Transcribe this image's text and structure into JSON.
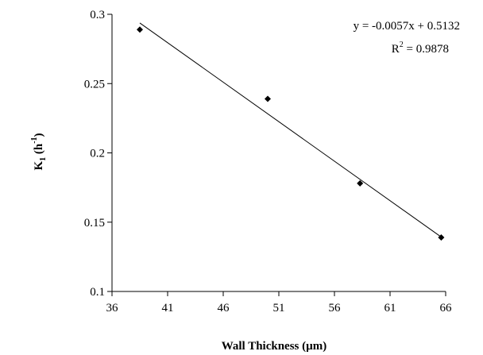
{
  "chart_data": {
    "type": "scatter",
    "xlabel": "Wall Thickness (µm)",
    "ylabel": {
      "main": "K",
      "sub": "1",
      "unit_open": " (h",
      "unit_sup": "-1",
      "unit_close": ")"
    },
    "xlim": [
      36,
      66
    ],
    "ylim": [
      0.1,
      0.3
    ],
    "xticks": [
      36,
      41,
      46,
      51,
      56,
      61,
      66
    ],
    "yticks": [
      0.1,
      0.15,
      0.2,
      0.25,
      0.3
    ],
    "xtick_labels": [
      "36",
      "41",
      "46",
      "51",
      "56",
      "61",
      "66"
    ],
    "ytick_labels": [
      "0.1",
      "0.15",
      "0.2",
      "0.25",
      "0.3"
    ],
    "grid": false,
    "points": [
      {
        "x": 38.5,
        "y": 0.289
      },
      {
        "x": 50.0,
        "y": 0.239
      },
      {
        "x": 58.3,
        "y": 0.178
      },
      {
        "x": 65.6,
        "y": 0.139
      }
    ],
    "trendline": {
      "slope": -0.0057,
      "intercept": 0.5132,
      "x_range": [
        38.5,
        65.6
      ]
    },
    "annotations": {
      "equation": "y = -0.0057x + 0.5132",
      "r2_prefix": "R",
      "r2_sup": "2",
      "r2_value": " = 0.9878"
    }
  }
}
